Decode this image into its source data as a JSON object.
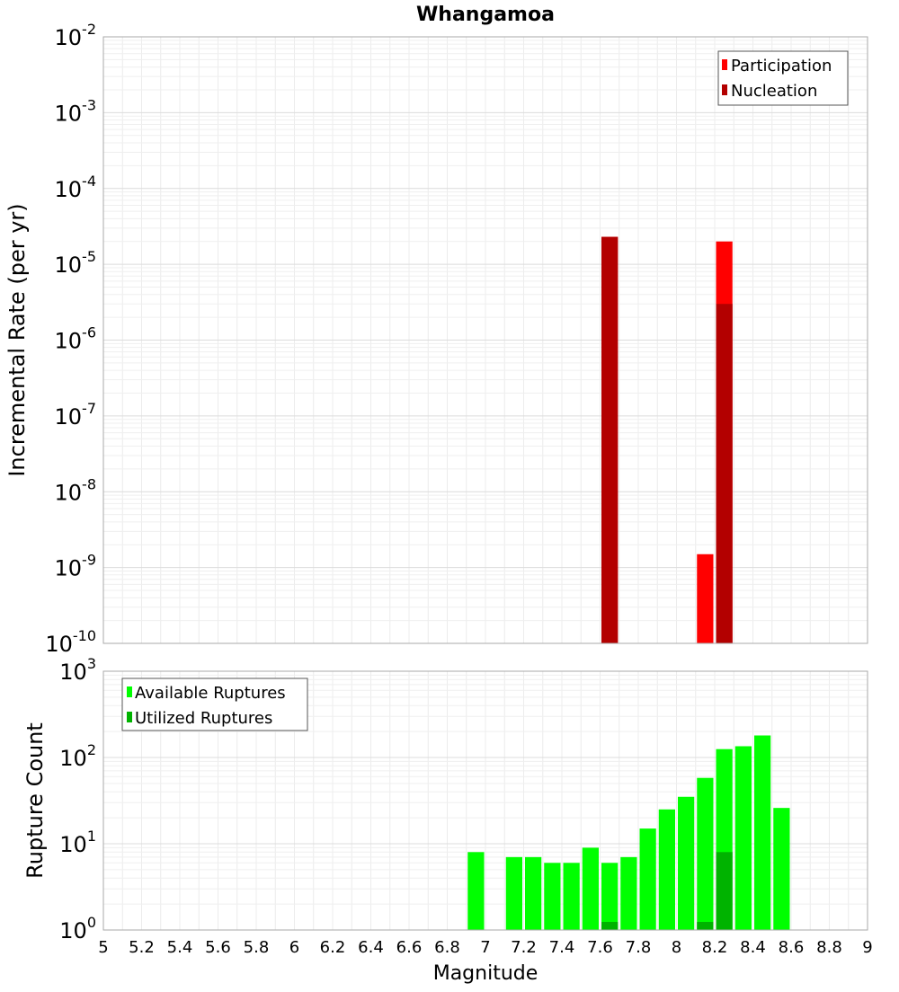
{
  "chart_data": [
    {
      "panel": "top",
      "type": "bar",
      "title": "Whangamoa",
      "ylabel": "Incremental Rate (per yr)",
      "yscale": "log",
      "ylim_exp": [
        -10,
        -2
      ],
      "xlim": [
        5,
        9
      ],
      "legend": "top-right",
      "series": [
        {
          "name": "Participation",
          "color": "#ff0000",
          "points": [
            {
              "x": 7.65,
              "y": 2.3e-05
            },
            {
              "x": 8.15,
              "y": 1.5e-09
            },
            {
              "x": 8.25,
              "y": 2e-05
            }
          ]
        },
        {
          "name": "Nucleation",
          "color": "#b30000",
          "points": [
            {
              "x": 7.65,
              "y": 2.3e-05
            },
            {
              "x": 8.25,
              "y": 3e-06
            }
          ]
        }
      ]
    },
    {
      "panel": "bottom",
      "type": "bar",
      "xlabel": "Magnitude",
      "ylabel": "Rupture Count",
      "yscale": "log",
      "ylim_exp": [
        0,
        3
      ],
      "xlim": [
        5,
        9
      ],
      "legend": "top-left",
      "series": [
        {
          "name": "Available Ruptures",
          "color": "#00ff00",
          "points": [
            {
              "x": 6.95,
              "y": 8
            },
            {
              "x": 7.15,
              "y": 7
            },
            {
              "x": 7.25,
              "y": 7
            },
            {
              "x": 7.35,
              "y": 6
            },
            {
              "x": 7.45,
              "y": 6
            },
            {
              "x": 7.55,
              "y": 9
            },
            {
              "x": 7.65,
              "y": 6
            },
            {
              "x": 7.75,
              "y": 7
            },
            {
              "x": 7.85,
              "y": 15
            },
            {
              "x": 7.95,
              "y": 25
            },
            {
              "x": 8.05,
              "y": 35
            },
            {
              "x": 8.15,
              "y": 58
            },
            {
              "x": 8.25,
              "y": 125
            },
            {
              "x": 8.35,
              "y": 135
            },
            {
              "x": 8.45,
              "y": 180
            },
            {
              "x": 8.55,
              "y": 26
            }
          ]
        },
        {
          "name": "Utilized Ruptures",
          "color": "#00b300",
          "points": [
            {
              "x": 7.65,
              "y": 1
            },
            {
              "x": 8.15,
              "y": 1
            },
            {
              "x": 8.25,
              "y": 8
            }
          ]
        }
      ]
    }
  ],
  "x_tick_labels": [
    "5",
    "5.2",
    "5.4",
    "5.6",
    "5.8",
    "6",
    "6.2",
    "6.4",
    "6.6",
    "6.8",
    "7",
    "7.2",
    "7.4",
    "7.6",
    "7.8",
    "8",
    "8.2",
    "8.4",
    "8.6",
    "8.8",
    "9"
  ]
}
